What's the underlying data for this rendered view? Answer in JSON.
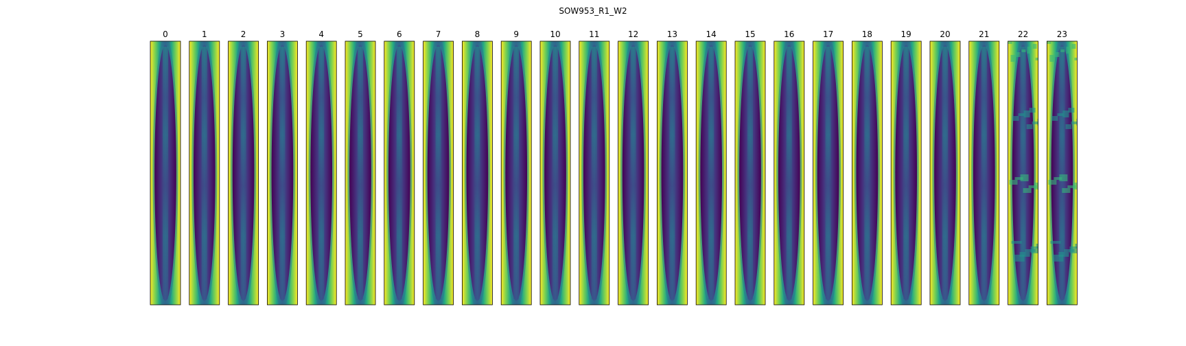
{
  "chart_data": {
    "type": "heatmap",
    "title": "SOW953_R1_W2",
    "panel_labels": [
      "0",
      "1",
      "2",
      "3",
      "4",
      "5",
      "6",
      "7",
      "8",
      "9",
      "10",
      "11",
      "12",
      "13",
      "14",
      "15",
      "16",
      "17",
      "18",
      "19",
      "20",
      "21",
      "22",
      "23"
    ],
    "colormap": "viridis",
    "axes_visible": false,
    "colors": {
      "low": "#440154",
      "high": "#fde725",
      "frame": "#000000"
    }
  }
}
